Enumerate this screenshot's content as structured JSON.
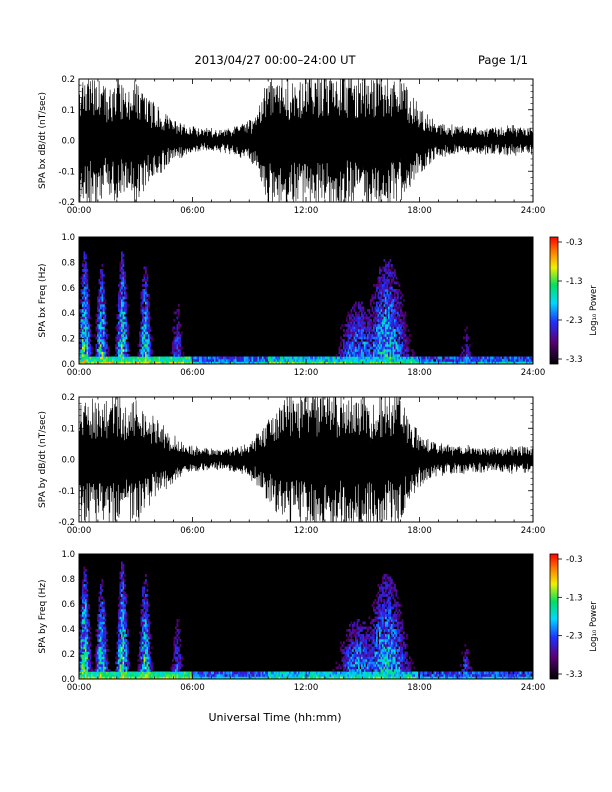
{
  "header": {
    "title": "2013/04/27  00:00–24:00 UT",
    "page": "Page 1/1"
  },
  "footer": {
    "xlabel": "Universal Time (hh:mm)"
  },
  "x_ticks": [
    "00:00",
    "06:00",
    "12:00",
    "18:00",
    "24:00"
  ],
  "colorbar": {
    "label": "Log₁₀ Power",
    "ticks": [
      "-0.3",
      "-1.3",
      "-2.3",
      "-3.3"
    ]
  },
  "chart_data": [
    {
      "type": "line",
      "ylabel": "SPA bx dB/dt (nT/sec)",
      "xlim": [
        0,
        24
      ],
      "ylim": [
        -0.2,
        0.2
      ],
      "y_ticks": [
        "0.2",
        "0.1",
        "0.0",
        "-0.1",
        "-0.2"
      ],
      "series": [
        {
          "x": [
            0,
            0.5,
            1,
            1.5,
            2,
            2.5,
            3,
            3.5,
            4,
            4.5,
            5,
            5.5,
            6,
            6.5,
            7,
            7.5,
            8,
            8.5,
            9,
            9.5,
            10,
            10.5,
            11,
            11.5,
            12,
            12.5,
            13,
            13.5,
            14,
            14.5,
            15,
            15.5,
            16,
            16.5,
            17,
            17.5,
            18,
            18.5,
            19,
            19.5,
            20,
            20.5,
            21,
            21.5,
            22,
            22.5,
            23,
            23.5,
            24
          ],
          "amplitude": [
            0.2,
            0.2,
            0.18,
            0.16,
            0.2,
            0.15,
            0.2,
            0.14,
            0.12,
            0.09,
            0.06,
            0.05,
            0.04,
            0.035,
            0.035,
            0.035,
            0.04,
            0.05,
            0.06,
            0.1,
            0.2,
            0.2,
            0.2,
            0.2,
            0.2,
            0.2,
            0.2,
            0.2,
            0.2,
            0.2,
            0.2,
            0.2,
            0.2,
            0.2,
            0.2,
            0.14,
            0.1,
            0.07,
            0.05,
            0.045,
            0.045,
            0.045,
            0.04,
            0.04,
            0.04,
            0.045,
            0.045,
            0.04,
            0.04
          ]
        }
      ]
    },
    {
      "type": "heatmap",
      "ylabel": "SPA bx Freq (Hz)",
      "xlim": [
        0,
        24
      ],
      "ylim": [
        0.0,
        1.0
      ],
      "y_ticks": [
        "1.0",
        "0.8",
        "0.6",
        "0.4",
        "0.2",
        "0.0"
      ],
      "value_range_log10_power": [
        -3.3,
        -0.3
      ],
      "bursts": [
        {
          "t": 0.3,
          "f_max": 0.9,
          "level": 0.75
        },
        {
          "t": 1.2,
          "f_max": 0.8,
          "level": 0.7
        },
        {
          "t": 2.3,
          "f_max": 0.9,
          "level": 0.72
        },
        {
          "t": 3.5,
          "f_max": 0.8,
          "level": 0.68
        },
        {
          "t": 5.2,
          "f_max": 0.5,
          "level": 0.45
        },
        {
          "t": 14.8,
          "f_max": 0.5,
          "level": 0.55
        },
        {
          "t": 16.3,
          "f_max": 0.85,
          "level": 0.62
        },
        {
          "t": 20.5,
          "f_max": 0.3,
          "level": 0.4
        }
      ]
    },
    {
      "type": "line",
      "ylabel": "SPA by dB/dt (nT/sec)",
      "xlim": [
        0,
        24
      ],
      "ylim": [
        -0.2,
        0.2
      ],
      "y_ticks": [
        "0.2",
        "0.1",
        "0.0",
        "-0.1",
        "-0.2"
      ],
      "series": [
        {
          "x": [
            0,
            0.5,
            1,
            1.5,
            2,
            2.5,
            3,
            3.5,
            4,
            4.5,
            5,
            5.5,
            6,
            6.5,
            7,
            7.5,
            8,
            8.5,
            9,
            9.5,
            10,
            10.5,
            11,
            11.5,
            12,
            12.5,
            13,
            13.5,
            14,
            14.5,
            15,
            15.5,
            16,
            16.5,
            17,
            17.5,
            18,
            18.5,
            19,
            19.5,
            20,
            20.5,
            21,
            21.5,
            22,
            22.5,
            23,
            23.5,
            24
          ],
          "amplitude": [
            0.2,
            0.2,
            0.18,
            0.2,
            0.2,
            0.16,
            0.2,
            0.15,
            0.12,
            0.1,
            0.07,
            0.05,
            0.04,
            0.035,
            0.03,
            0.03,
            0.035,
            0.04,
            0.05,
            0.08,
            0.12,
            0.16,
            0.2,
            0.2,
            0.2,
            0.2,
            0.2,
            0.2,
            0.2,
            0.2,
            0.2,
            0.2,
            0.2,
            0.2,
            0.2,
            0.12,
            0.08,
            0.06,
            0.05,
            0.04,
            0.04,
            0.04,
            0.035,
            0.035,
            0.035,
            0.035,
            0.04,
            0.035,
            0.035
          ]
        }
      ]
    },
    {
      "type": "heatmap",
      "ylabel": "SPA by Freq (Hz)",
      "xlim": [
        0,
        24
      ],
      "ylim": [
        0.0,
        1.0
      ],
      "y_ticks": [
        "1.0",
        "0.8",
        "0.6",
        "0.4",
        "0.2",
        "0.0"
      ],
      "value_range_log10_power": [
        -3.3,
        -0.3
      ],
      "bursts": [
        {
          "t": 0.3,
          "f_max": 0.9,
          "level": 0.75
        },
        {
          "t": 1.2,
          "f_max": 0.8,
          "level": 0.7
        },
        {
          "t": 2.3,
          "f_max": 0.95,
          "level": 0.74
        },
        {
          "t": 3.5,
          "f_max": 0.85,
          "level": 0.7
        },
        {
          "t": 5.2,
          "f_max": 0.5,
          "level": 0.45
        },
        {
          "t": 14.8,
          "f_max": 0.5,
          "level": 0.55
        },
        {
          "t": 16.3,
          "f_max": 0.85,
          "level": 0.62
        },
        {
          "t": 20.5,
          "f_max": 0.3,
          "level": 0.45
        }
      ]
    }
  ]
}
